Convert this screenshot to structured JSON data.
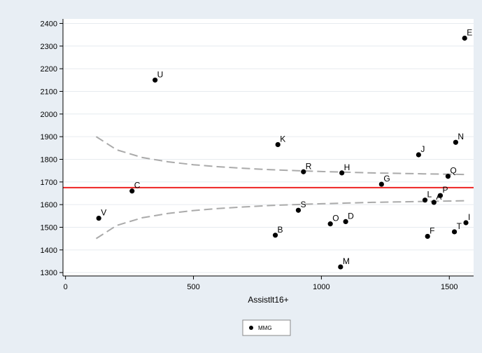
{
  "chart_data": {
    "type": "scatter",
    "xlabel": "Assistlt16+",
    "ylabel": "",
    "xlim": [
      -10,
      1595
    ],
    "ylim": [
      1285,
      2420
    ],
    "x_ticks": [
      0,
      500,
      1000,
      1500
    ],
    "y_ticks": [
      1300,
      1400,
      1500,
      1600,
      1700,
      1800,
      1900,
      2000,
      2100,
      2200,
      2300,
      2400
    ],
    "grid": "horizontal",
    "legend": {
      "position": "bottom-center",
      "entries": [
        "MMG"
      ]
    },
    "reference_line": {
      "y": 1675,
      "color": "#ee2222"
    },
    "limit_lines": {
      "color": "#aaaaaa",
      "upper": [
        [
          120,
          1900
        ],
        [
          200,
          1842
        ],
        [
          300,
          1808
        ],
        [
          400,
          1789
        ],
        [
          500,
          1776
        ],
        [
          600,
          1767
        ],
        [
          700,
          1760
        ],
        [
          800,
          1754
        ],
        [
          900,
          1750
        ],
        [
          1000,
          1746
        ],
        [
          1100,
          1743
        ],
        [
          1200,
          1740
        ],
        [
          1300,
          1738
        ],
        [
          1400,
          1736
        ],
        [
          1500,
          1734
        ],
        [
          1560,
          1733
        ]
      ],
      "lower": [
        [
          120,
          1450
        ],
        [
          200,
          1508
        ],
        [
          300,
          1542
        ],
        [
          400,
          1561
        ],
        [
          500,
          1574
        ],
        [
          600,
          1583
        ],
        [
          700,
          1590
        ],
        [
          800,
          1596
        ],
        [
          900,
          1600
        ],
        [
          1000,
          1604
        ],
        [
          1100,
          1607
        ],
        [
          1200,
          1610
        ],
        [
          1300,
          1612
        ],
        [
          1400,
          1614
        ],
        [
          1500,
          1616
        ],
        [
          1560,
          1617
        ]
      ]
    },
    "series": [
      {
        "name": "MMG",
        "color": "#000000",
        "points": [
          {
            "label": "E",
            "x": 1560,
            "y": 2335
          },
          {
            "label": "U",
            "x": 350,
            "y": 2150
          },
          {
            "label": "K",
            "x": 830,
            "y": 1865
          },
          {
            "label": "N",
            "x": 1525,
            "y": 1875
          },
          {
            "label": "J",
            "x": 1380,
            "y": 1820
          },
          {
            "label": "R",
            "x": 930,
            "y": 1745
          },
          {
            "label": "H",
            "x": 1080,
            "y": 1740
          },
          {
            "label": "Q",
            "x": 1495,
            "y": 1725
          },
          {
            "label": "G",
            "x": 1235,
            "y": 1690
          },
          {
            "label": "C",
            "x": 260,
            "y": 1660
          },
          {
            "label": "P",
            "x": 1465,
            "y": 1640
          },
          {
            "label": "L",
            "x": 1405,
            "y": 1620
          },
          {
            "label": "A",
            "x": 1440,
            "y": 1610
          },
          {
            "label": "S",
            "x": 910,
            "y": 1575
          },
          {
            "label": "V",
            "x": 130,
            "y": 1540
          },
          {
            "label": "D",
            "x": 1095,
            "y": 1525
          },
          {
            "label": "I",
            "x": 1565,
            "y": 1520
          },
          {
            "label": "O",
            "x": 1035,
            "y": 1515
          },
          {
            "label": "T",
            "x": 1520,
            "y": 1480
          },
          {
            "label": "B",
            "x": 820,
            "y": 1465
          },
          {
            "label": "F",
            "x": 1415,
            "y": 1460
          },
          {
            "label": "M",
            "x": 1075,
            "y": 1325
          }
        ]
      }
    ]
  }
}
